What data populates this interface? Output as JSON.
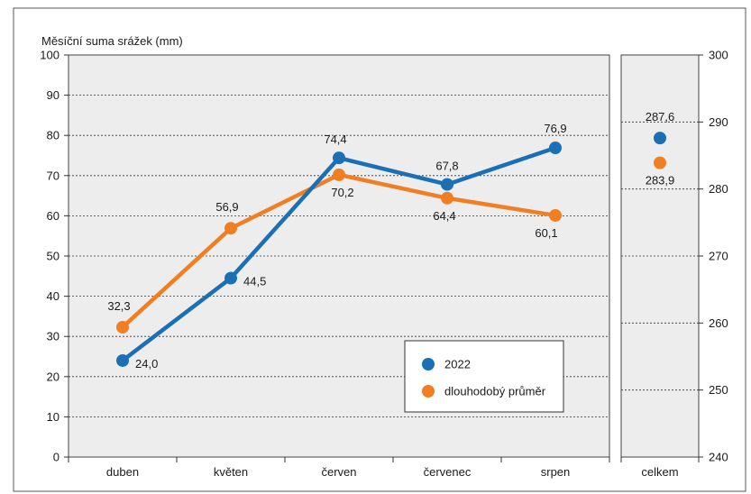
{
  "chart_data": {
    "type": "line",
    "ylabel": "Měsíční suma srážek (mm)",
    "categories": [
      "duben",
      "květen",
      "červen",
      "červenec",
      "srpen"
    ],
    "ylim": [
      0,
      100
    ],
    "yticks": [
      0,
      10,
      20,
      30,
      40,
      50,
      60,
      70,
      80,
      90,
      100
    ],
    "grid": true,
    "series": [
      {
        "name": "2022",
        "color": "#1a6fb5",
        "values": [
          24.0,
          44.5,
          74.4,
          67.8,
          76.9
        ],
        "labels": [
          "24,0",
          "44,5",
          "74,4",
          "67,8",
          "76,9"
        ]
      },
      {
        "name": "dlouhodobý průměr",
        "color": "#f07f23",
        "values": [
          32.3,
          56.9,
          70.2,
          64.4,
          60.1
        ],
        "labels": [
          "32,3",
          "56,9",
          "70,2",
          "64,4",
          "60,1"
        ]
      }
    ],
    "total_panel": {
      "category": "celkem",
      "ylim": [
        240,
        300
      ],
      "yticks": [
        240,
        250,
        260,
        270,
        280,
        290,
        300
      ],
      "values": [
        287.6,
        283.9
      ],
      "labels": [
        "287,6",
        "283,9"
      ]
    },
    "legend": {
      "position": "bottom-right",
      "entries": [
        "2022",
        "dlouhodobý průměr"
      ]
    },
    "colors": {
      "plot_background": "#ededed",
      "grid": "#333333"
    }
  }
}
